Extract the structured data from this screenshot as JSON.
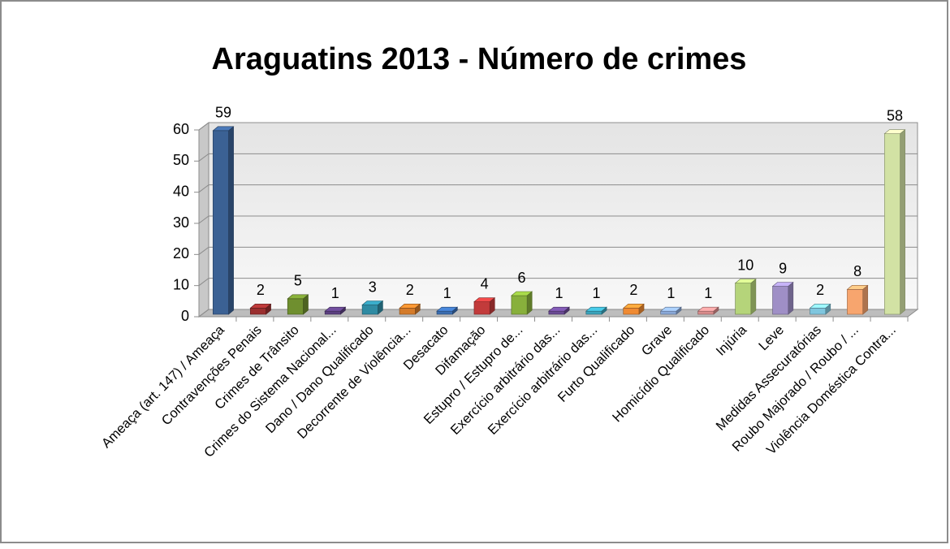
{
  "chart_data": {
    "type": "bar3d",
    "title": "Araguatins 2013 - Número de crimes",
    "categories": [
      "Ameaça (art. 147) / Ameaça",
      "Contravenções Penais",
      "Crimes de Trânsito",
      "Crimes do Sistema Nacional...",
      "Dano / Dano Qualificado",
      "Decorrente de Violência...",
      "Desacato",
      "Difamação",
      "Estupro / Estupro de...",
      "Exercício arbitrário das...",
      "Exercício arbitrário das...",
      "Furto Qualificado",
      "Grave",
      "Homicídio Qualificado",
      "Injúria",
      "Leve",
      "Medidas Assecuratórias",
      "Roubo Majorado / Roubo  / ...",
      "Violência Doméstica Contra..."
    ],
    "values": [
      59,
      2,
      5,
      1,
      3,
      2,
      1,
      4,
      6,
      1,
      1,
      2,
      1,
      1,
      10,
      9,
      2,
      8,
      58
    ],
    "colors": [
      "#3b6194",
      "#9a2f2f",
      "#6f8f2f",
      "#5b3f80",
      "#2f8ba3",
      "#d47b2a",
      "#3a6db0",
      "#c23b3b",
      "#88b03c",
      "#6a4a94",
      "#3aa3bb",
      "#ef8a32",
      "#8aa8d8",
      "#d98c8c",
      "#b5d47a",
      "#9f8fc6",
      "#7fc6de",
      "#f7a56e",
      "#d2e2a4"
    ],
    "ylim": [
      0,
      60
    ],
    "yticks": [
      0,
      10,
      20,
      30,
      40,
      50,
      60
    ],
    "grid": true
  }
}
